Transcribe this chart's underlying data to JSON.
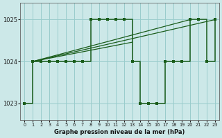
{
  "title": "Graphe pression niveau de la mer (hPa)",
  "bg_color": "#cce8e8",
  "grid_color": "#99cccc",
  "line_color": "#1a5c1a",
  "marker_color": "#1a5c1a",
  "xlim": [
    -0.5,
    23.5
  ],
  "ylim": [
    1022.6,
    1025.4
  ],
  "yticks": [
    1023,
    1024,
    1025
  ],
  "xticks": [
    0,
    1,
    2,
    3,
    4,
    5,
    6,
    7,
    8,
    9,
    10,
    11,
    12,
    13,
    14,
    15,
    16,
    17,
    18,
    19,
    20,
    21,
    22,
    23
  ],
  "hours": [
    0,
    1,
    2,
    3,
    4,
    5,
    6,
    7,
    8,
    9,
    10,
    11,
    12,
    13,
    14,
    15,
    16,
    17,
    18,
    19,
    20,
    21,
    22,
    23
  ],
  "pressure": [
    1023.0,
    1024.0,
    1024.0,
    1024.0,
    1024.0,
    1024.0,
    1024.0,
    1024.0,
    1025.0,
    1025.0,
    1025.0,
    1025.0,
    1025.0,
    1024.0,
    1023.0,
    1023.0,
    1023.0,
    1024.0,
    1024.0,
    1024.0,
    1025.0,
    1025.0,
    1024.0,
    1025.0
  ],
  "diag_lines": [
    {
      "x": [
        1,
        23
      ],
      "y": [
        1024.0,
        1025.0
      ]
    },
    {
      "x": [
        1,
        20
      ],
      "y": [
        1024.0,
        1025.0
      ]
    },
    {
      "x": [
        1,
        13
      ],
      "y": [
        1024.0,
        1024.46
      ]
    }
  ]
}
